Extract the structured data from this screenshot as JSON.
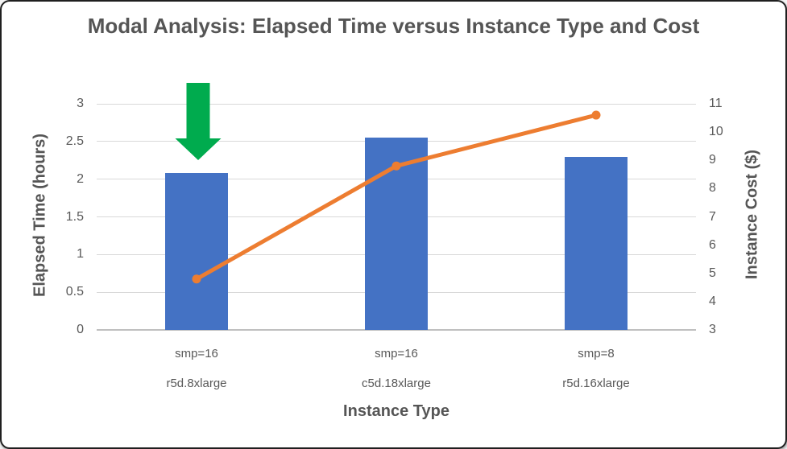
{
  "chart_data": {
    "type": "bar",
    "subtype": "combo bar + line, dual axis",
    "title": "Modal Analysis: Elapsed Time versus Instance Type and Cost",
    "xlabel": "Instance Type",
    "ylabel_left": "Elapsed Time (hours)",
    "ylabel_right": "Instance Cost ($)",
    "categories_line1": [
      "smp=16",
      "smp=16",
      "smp=8"
    ],
    "categories_line2": [
      "r5d.8xlarge",
      "c5d.18xlarge",
      "r5d.16xlarge"
    ],
    "series": [
      {
        "name": "Elapsed Time (hours)",
        "type": "bar",
        "axis": "left",
        "values": [
          2.08,
          2.55,
          2.3
        ],
        "color": "#4472C4"
      },
      {
        "name": "Instance Cost ($)",
        "type": "line",
        "axis": "right",
        "values": [
          4.8,
          8.8,
          10.6
        ],
        "color": "#ED7D31"
      }
    ],
    "left_axis": {
      "min": 0,
      "max": 3,
      "ticks": [
        "0",
        "0.5",
        "1",
        "1.5",
        "2",
        "2.5",
        "3"
      ]
    },
    "right_axis": {
      "min": 3,
      "max": 11,
      "ticks": [
        "3",
        "4",
        "5",
        "6",
        "7",
        "8",
        "9",
        "10",
        "11"
      ]
    },
    "grid": "horizontal gridlines on",
    "legend": "none",
    "annotation": {
      "shape": "down-arrow",
      "points_at": "r5d.8xlarge bar",
      "color": "#00AB4E"
    }
  },
  "colors": {
    "bar_blue": "#4472C4",
    "line_orange": "#ED7D31",
    "arrow_green": "#00AB4E",
    "gridline": "#D9D9D9",
    "axis_line": "#BFBFBF",
    "tick_text": "#595959",
    "title_text": "#555555",
    "frame_border": "#1F1F1F"
  }
}
